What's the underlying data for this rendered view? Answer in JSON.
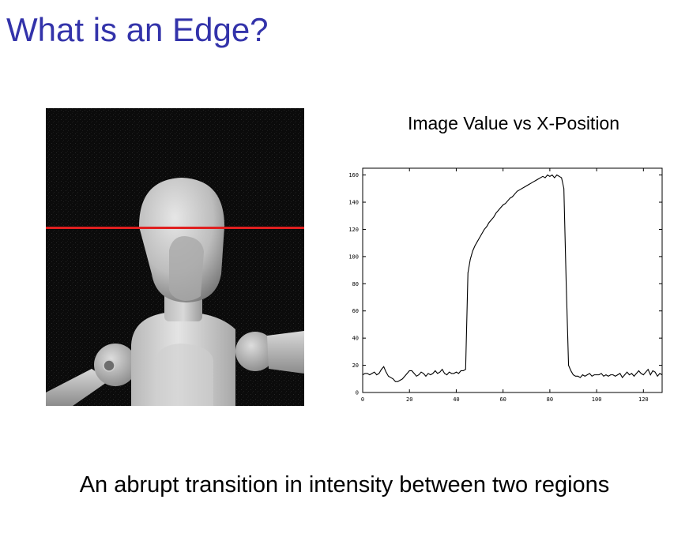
{
  "slide": {
    "title": "What is an Edge?",
    "caption": "An abrupt transition in intensity between two regions",
    "title_color": "#3333aa"
  },
  "photo": {
    "scanline_color": "#e02020",
    "background_color": "#0b0b0b"
  },
  "chart_data": {
    "type": "line",
    "title": "Image Value vs X-Position",
    "xlabel": "",
    "ylabel": "",
    "xlim": [
      0,
      128
    ],
    "ylim": [
      0,
      165
    ],
    "xticks": [
      0,
      20,
      40,
      60,
      80,
      100,
      120
    ],
    "yticks": [
      0,
      20,
      40,
      60,
      80,
      100,
      120,
      140,
      160
    ],
    "grid": false,
    "line_color": "#000000",
    "series": [
      {
        "x": [
          0,
          1,
          2,
          3,
          4,
          5,
          6,
          7,
          8,
          9,
          10,
          11,
          12,
          13,
          14,
          15,
          16,
          17,
          18,
          19,
          20,
          21,
          22,
          23,
          24,
          25,
          26,
          27,
          28,
          29,
          30,
          31,
          32,
          33,
          34,
          35,
          36,
          37,
          38,
          39,
          40,
          41,
          42,
          43,
          44,
          45,
          46,
          47,
          48,
          49,
          50,
          51,
          52,
          53,
          54,
          55,
          56,
          57,
          58,
          59,
          60,
          61,
          62,
          63,
          64,
          65,
          66,
          67,
          68,
          69,
          70,
          71,
          72,
          73,
          74,
          75,
          76,
          77,
          78,
          79,
          80,
          81,
          82,
          83,
          84,
          85,
          86,
          87,
          88,
          89,
          90,
          91,
          92,
          93,
          94,
          95,
          96,
          97,
          98,
          99,
          100,
          101,
          102,
          103,
          104,
          105,
          106,
          107,
          108,
          109,
          110,
          111,
          112,
          113,
          114,
          115,
          116,
          117,
          118,
          119,
          120,
          121,
          122,
          123,
          124,
          125,
          126,
          127,
          128
        ],
        "y": [
          13,
          14,
          14,
          13,
          14,
          15,
          13,
          14,
          17,
          19,
          15,
          12,
          11,
          10,
          8,
          8,
          9,
          10,
          12,
          14,
          16,
          16,
          14,
          12,
          13,
          15,
          14,
          12,
          14,
          13,
          14,
          16,
          14,
          15,
          17,
          14,
          13,
          15,
          14,
          14,
          15,
          14,
          16,
          16,
          17,
          88,
          98,
          104,
          108,
          111,
          114,
          117,
          120,
          122,
          125,
          127,
          129,
          132,
          134,
          136,
          138,
          139,
          141,
          143,
          144,
          146,
          148,
          149,
          150,
          151,
          152,
          153,
          154,
          155,
          156,
          157,
          158,
          159,
          158,
          160,
          159,
          160,
          158,
          160,
          159,
          158,
          150,
          80,
          20,
          16,
          13,
          12,
          12,
          11,
          13,
          12,
          13,
          14,
          12,
          13,
          13,
          13,
          14,
          12,
          13,
          12,
          13,
          13,
          12,
          13,
          14,
          11,
          13,
          15,
          13,
          14,
          12,
          14,
          16,
          14,
          13,
          15,
          17,
          13,
          16,
          15,
          12,
          14,
          13
        ]
      }
    ]
  }
}
